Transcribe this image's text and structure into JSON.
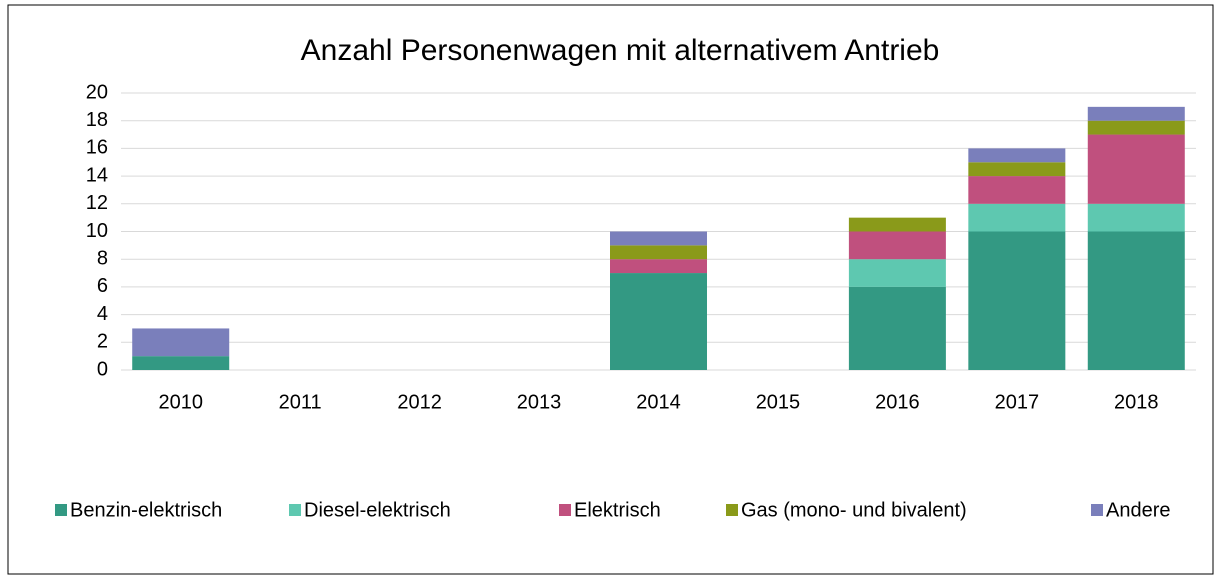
{
  "chart_data": {
    "type": "stacked_bar",
    "title": "Anzahl Personenwagen mit alternativem Antrieb",
    "categories": [
      "2010",
      "2011",
      "2012",
      "2013",
      "2014",
      "2015",
      "2016",
      "2017",
      "2018"
    ],
    "series": [
      {
        "name": "Benzin-elektrisch",
        "color": "#339983",
        "values": [
          1,
          0,
          0,
          0,
          7,
          0,
          6,
          10,
          10
        ]
      },
      {
        "name": "Diesel-elektrisch",
        "color": "#5ec8b0",
        "values": [
          0,
          0,
          0,
          0,
          0,
          0,
          2,
          2,
          2
        ]
      },
      {
        "name": "Elektrisch",
        "color": "#c0507e",
        "values": [
          0,
          0,
          0,
          0,
          1,
          0,
          2,
          2,
          5
        ]
      },
      {
        "name": "Gas (mono- und bivalent)",
        "color": "#8a9a1a",
        "values": [
          0,
          0,
          0,
          0,
          1,
          0,
          1,
          1,
          1
        ]
      },
      {
        "name": "Andere",
        "color": "#7a7fbb",
        "values": [
          2,
          0,
          0,
          0,
          1,
          0,
          0,
          1,
          1
        ]
      }
    ],
    "ylim": [
      0,
      20
    ],
    "yticks": [
      0,
      2,
      4,
      6,
      8,
      10,
      12,
      14,
      16,
      18,
      20
    ],
    "grid": true,
    "legend": "bottom"
  }
}
